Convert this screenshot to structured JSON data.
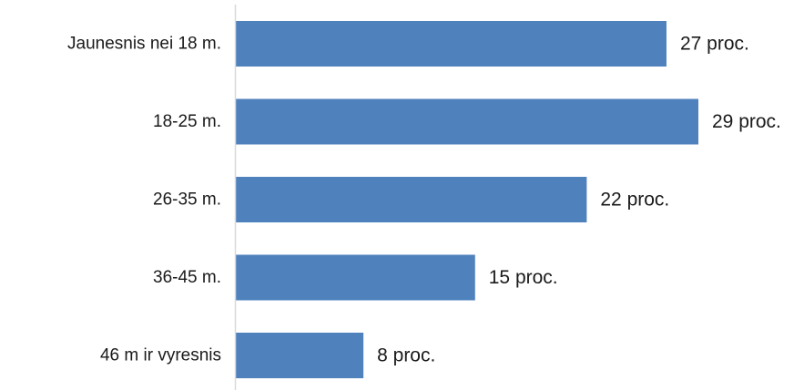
{
  "chart_data": {
    "type": "bar",
    "orientation": "horizontal",
    "categories": [
      "Jaunesnis nei 18 m.",
      "18-25 m.",
      "26-35 m.",
      "36-45 m.",
      "46 m ir vyresnis"
    ],
    "values": [
      27,
      29,
      22,
      15,
      8
    ],
    "value_labels": [
      "27 proc.",
      "29 proc.",
      "22 proc.",
      "15 proc.",
      "8 proc."
    ],
    "xlim": [
      0,
      29
    ],
    "grid": false,
    "legend": "none",
    "bar_color": "#4f81bd",
    "axis_color": "#d9d9d9"
  }
}
